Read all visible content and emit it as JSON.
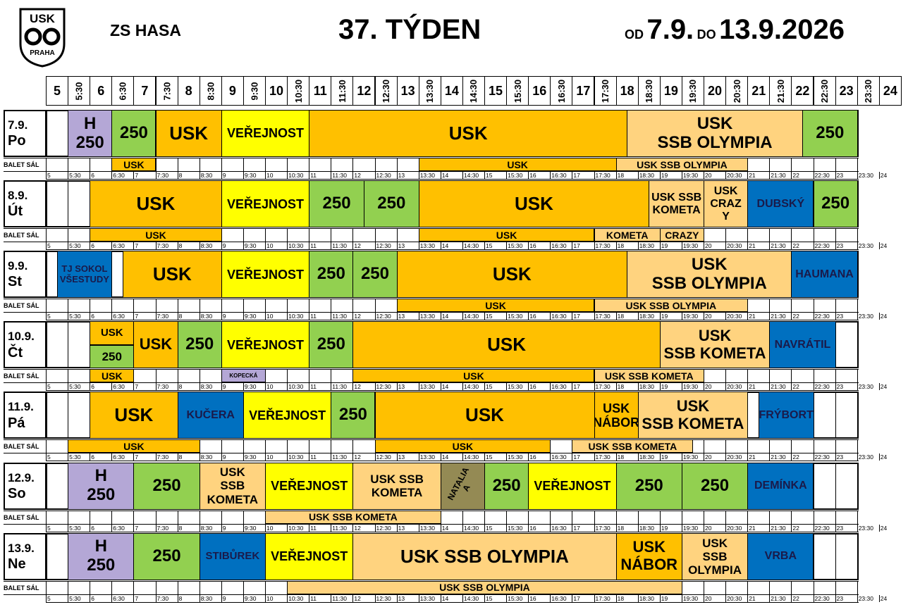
{
  "header": {
    "logo_text_top": "USK",
    "logo_text_bottom": "PRAHA",
    "venue": "ZS HASA",
    "week": "37. TÝDEN",
    "od_label": "OD",
    "from": "7.9.",
    "do_label": "DO",
    "to": "13.9.2026"
  },
  "times": [
    "5",
    "5:30",
    "6",
    "6:30",
    "7",
    "7:30",
    "8",
    "8:30",
    "9",
    "9:30",
    "10",
    "10:30",
    "11",
    "11:30",
    "12",
    "12:30",
    "13",
    "13:30",
    "14",
    "14:30",
    "15",
    "15:30",
    "16",
    "16:30",
    "17",
    "17:30",
    "18",
    "18:30",
    "19",
    "19:30",
    "20",
    "20:30",
    "21",
    "21:30",
    "22",
    "22:30",
    "23",
    "23:30",
    "24"
  ],
  "balet_label": "BALET SÁL",
  "colors": {
    "usk": "#FFC000",
    "ssb": "#FFD37F",
    "green": "#92D050",
    "yellow": "#FFFF00",
    "purple": "#B4A7D6",
    "blue": "#0070C0",
    "olive": "#948A54",
    "kopecka": "#B4A7D6"
  },
  "days": [
    {
      "date": "7.9.",
      "name": "Po",
      "blocks": [
        {
          "from": 1,
          "to": 3,
          "text": "H\n250",
          "color": "purple",
          "size": 24
        },
        {
          "from": 3,
          "to": 5,
          "text": "250",
          "color": "green",
          "size": 24
        },
        {
          "from": 5,
          "to": 8,
          "text": "USK",
          "color": "usk",
          "size": 26
        },
        {
          "from": 8,
          "to": 12,
          "text": "VEŘEJNOST",
          "color": "yellow",
          "size": 18
        },
        {
          "from": 12,
          "to": 26.5,
          "text": "USK",
          "color": "usk",
          "size": 26
        },
        {
          "from": 26.5,
          "to": 34.5,
          "text": "USK\nSSB OLYMPIA",
          "color": "ssb",
          "size": 24
        },
        {
          "from": 34.5,
          "to": 37,
          "text": "250",
          "color": "green",
          "size": 24
        }
      ],
      "balet": [
        {
          "from": 3,
          "to": 5,
          "text": "USK",
          "color": "usk"
        },
        {
          "from": 17,
          "to": 26,
          "text": "USK",
          "color": "usk"
        },
        {
          "from": 26,
          "to": 32,
          "text": "USK SSB OLYMPIA",
          "color": "ssb"
        }
      ]
    },
    {
      "date": "8.9.",
      "name": "Út",
      "blocks": [
        {
          "from": 2,
          "to": 8,
          "text": "USK",
          "color": "usk",
          "size": 26
        },
        {
          "from": 8,
          "to": 12,
          "text": "VEŘEJNOST",
          "color": "yellow",
          "size": 18
        },
        {
          "from": 12,
          "to": 14.5,
          "text": "250",
          "color": "green",
          "size": 24
        },
        {
          "from": 14.5,
          "to": 17,
          "text": "250",
          "color": "green",
          "size": 24
        },
        {
          "from": 17,
          "to": 27.5,
          "text": "USK",
          "color": "usk",
          "size": 26
        },
        {
          "from": 27.5,
          "to": 30,
          "text": "USK SSB\nKOMETA",
          "color": "ssb",
          "size": 16
        },
        {
          "from": 30,
          "to": 32,
          "text": "USK\nCRAZ\nY",
          "color": "ssb",
          "size": 16
        },
        {
          "from": 32,
          "to": 35,
          "text": "DUBSKÝ",
          "color": "blue",
          "size": 16
        },
        {
          "from": 35,
          "to": 37,
          "text": "250",
          "color": "green",
          "size": 24
        }
      ],
      "balet": [
        {
          "from": 2,
          "to": 8,
          "text": "USK",
          "color": "usk"
        },
        {
          "from": 17,
          "to": 25,
          "text": "USK",
          "color": "usk"
        },
        {
          "from": 25,
          "to": 28,
          "text": "KOMETA",
          "color": "ssb"
        },
        {
          "from": 28,
          "to": 30,
          "text": "CRAZY",
          "color": "ssb"
        }
      ]
    },
    {
      "date": "9.9.",
      "name": "St",
      "blocks": [
        {
          "from": 0.5,
          "to": 3,
          "text": "TJ SOKOL\nVŠESTUDY",
          "color": "blue",
          "size": 13
        },
        {
          "from": 3.5,
          "to": 8,
          "text": "USK",
          "color": "usk",
          "size": 26
        },
        {
          "from": 8,
          "to": 12,
          "text": "VEŘEJNOST",
          "color": "yellow",
          "size": 18
        },
        {
          "from": 12,
          "to": 14,
          "text": "250",
          "color": "green",
          "size": 24
        },
        {
          "from": 14,
          "to": 16,
          "text": "250",
          "color": "green",
          "size": 24
        },
        {
          "from": 16,
          "to": 26.5,
          "text": "USK",
          "color": "usk",
          "size": 26
        },
        {
          "from": 26.5,
          "to": 34,
          "text": "USK\nSSB OLYMPIA",
          "color": "ssb",
          "size": 24
        },
        {
          "from": 34,
          "to": 37,
          "text": "HAUMANA",
          "color": "blue",
          "size": 16
        }
      ],
      "balet": [
        {
          "from": 16,
          "to": 25,
          "text": "USK",
          "color": "usk"
        },
        {
          "from": 25,
          "to": 32,
          "text": "USK SSB OLYMPIA",
          "color": "ssb"
        }
      ]
    },
    {
      "date": "10.9.",
      "name": "Čt",
      "blocks": [
        {
          "from": 2,
          "to": 4,
          "text": "USK",
          "color": "usk",
          "size": 15,
          "half": "top"
        },
        {
          "from": 2,
          "to": 4,
          "text": "250",
          "color": "green",
          "size": 17,
          "half": "bottom"
        },
        {
          "from": 4,
          "to": 6,
          "text": "USK",
          "color": "usk",
          "size": 22
        },
        {
          "from": 6,
          "to": 8,
          "text": "250",
          "color": "green",
          "size": 24
        },
        {
          "from": 8,
          "to": 12,
          "text": "VEŘEJNOST",
          "color": "yellow",
          "size": 18
        },
        {
          "from": 12,
          "to": 14,
          "text": "250",
          "color": "green",
          "size": 24
        },
        {
          "from": 14,
          "to": 28,
          "text": "USK",
          "color": "usk",
          "size": 26
        },
        {
          "from": 28,
          "to": 33,
          "text": "USK\nSSB KOMETA",
          "color": "ssb",
          "size": 22
        },
        {
          "from": 33,
          "to": 36,
          "text": "NAVRÁTIL",
          "color": "blue",
          "size": 16
        }
      ],
      "balet": [
        {
          "from": 2,
          "to": 4,
          "text": "USK",
          "color": "usk"
        },
        {
          "from": 8,
          "to": 10,
          "text": "KOPECKÁ",
          "color": "kopecka",
          "size": 8
        },
        {
          "from": 14,
          "to": 25,
          "text": "USK",
          "color": "usk"
        },
        {
          "from": 25,
          "to": 30,
          "text": "USK SSB KOMETA",
          "color": "ssb"
        }
      ]
    },
    {
      "date": "11.9.",
      "name": "Pá",
      "blocks": [
        {
          "from": 2,
          "to": 6,
          "text": "USK",
          "color": "usk",
          "size": 26
        },
        {
          "from": 6,
          "to": 9,
          "text": "KUČERA",
          "color": "blue",
          "size": 16
        },
        {
          "from": 9,
          "to": 13,
          "text": "VEŘEJNOST",
          "color": "yellow",
          "size": 18
        },
        {
          "from": 13,
          "to": 15,
          "text": "250",
          "color": "green",
          "size": 24
        },
        {
          "from": 15,
          "to": 25,
          "text": "USK",
          "color": "usk",
          "size": 26
        },
        {
          "from": 25,
          "to": 27,
          "text": "USK\nNÁBOR",
          "color": "usk",
          "size": 18,
          "small2": true
        },
        {
          "from": 27,
          "to": 32,
          "text": "USK\nSSB KOMETA",
          "color": "ssb",
          "size": 22
        },
        {
          "from": 32.5,
          "to": 35,
          "text": "FRÝBORT",
          "color": "blue",
          "size": 16
        }
      ],
      "balet": [
        {
          "from": 1,
          "to": 7,
          "text": "USK",
          "color": "usk"
        },
        {
          "from": 15,
          "to": 23,
          "text": "USK",
          "color": "usk"
        },
        {
          "from": 24,
          "to": 29.5,
          "text": "USK SSB KOMETA",
          "color": "ssb"
        }
      ]
    },
    {
      "date": "12.9.",
      "name": "So",
      "blocks": [
        {
          "from": 1,
          "to": 4,
          "text": "H\n250",
          "color": "purple",
          "size": 24
        },
        {
          "from": 4,
          "to": 7,
          "text": "250",
          "color": "green",
          "size": 24
        },
        {
          "from": 7,
          "to": 10,
          "text": "USK\nSSB\nKOMETA",
          "color": "ssb",
          "size": 17
        },
        {
          "from": 10,
          "to": 14,
          "text": "VEŘEJNOST",
          "color": "yellow",
          "size": 18
        },
        {
          "from": 14,
          "to": 18,
          "text": "USK   SSB\nKOMETA",
          "color": "ssb",
          "size": 17
        },
        {
          "from": 18,
          "to": 20,
          "text": "NATALIA A",
          "color": "olive",
          "size": 12,
          "rot": true
        },
        {
          "from": 20,
          "to": 22,
          "text": "250",
          "color": "green",
          "size": 24
        },
        {
          "from": 22,
          "to": 26,
          "text": "VEŘEJNOST",
          "color": "yellow",
          "size": 18
        },
        {
          "from": 26,
          "to": 29,
          "text": "250",
          "color": "green",
          "size": 24
        },
        {
          "from": 29,
          "to": 32,
          "text": "250",
          "color": "green",
          "size": 24
        },
        {
          "from": 32,
          "to": 35,
          "text": "DEMÍNKA",
          "color": "blue",
          "size": 16
        }
      ],
      "balet": [
        {
          "from": 10,
          "to": 18,
          "text": "USK SSB KOMETA",
          "color": "ssb"
        }
      ]
    },
    {
      "date": "13.9.",
      "name": "Ne",
      "blocks": [
        {
          "from": 1,
          "to": 4,
          "text": "H\n250",
          "color": "purple",
          "size": 24
        },
        {
          "from": 4,
          "to": 7,
          "text": "250",
          "color": "green",
          "size": 24
        },
        {
          "from": 7,
          "to": 10,
          "text": "STIBŮREK",
          "color": "blue",
          "size": 15
        },
        {
          "from": 10,
          "to": 14,
          "text": "VEŘEJNOST",
          "color": "yellow",
          "size": 18
        },
        {
          "from": 14,
          "to": 26,
          "text": "USK SSB OLYMPIA",
          "color": "ssb",
          "size": 26
        },
        {
          "from": 26,
          "to": 29,
          "text": "USK\nNÁBOR",
          "color": "usk",
          "size": 22,
          "small2": true
        },
        {
          "from": 29,
          "to": 32,
          "text": "USK\nSSB\nOLYMPIA",
          "color": "ssb",
          "size": 17
        },
        {
          "from": 32,
          "to": 35,
          "text": "VRBA",
          "color": "blue",
          "size": 16
        }
      ],
      "balet": [
        {
          "from": 11,
          "to": 29,
          "text": "USK SSB OLYMPIA",
          "color": "ssb"
        }
      ]
    }
  ]
}
